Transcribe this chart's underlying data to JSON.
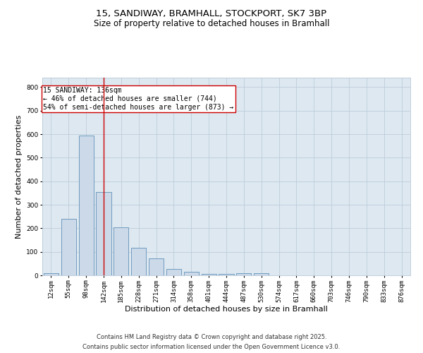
{
  "title_line1": "15, SANDIWAY, BRAMHALL, STOCKPORT, SK7 3BP",
  "title_line2": "Size of property relative to detached houses in Bramhall",
  "xlabel": "Distribution of detached houses by size in Bramhall",
  "ylabel": "Number of detached properties",
  "bar_labels": [
    "12sqm",
    "55sqm",
    "98sqm",
    "142sqm",
    "185sqm",
    "228sqm",
    "271sqm",
    "314sqm",
    "358sqm",
    "401sqm",
    "444sqm",
    "487sqm",
    "530sqm",
    "574sqm",
    "617sqm",
    "660sqm",
    "703sqm",
    "746sqm",
    "790sqm",
    "833sqm",
    "876sqm"
  ],
  "bar_values": [
    10,
    240,
    595,
    355,
    205,
    118,
    72,
    28,
    14,
    6,
    5,
    8,
    8,
    0,
    0,
    0,
    0,
    0,
    0,
    0,
    0
  ],
  "bar_color": "#ccd9e8",
  "bar_edge_color": "#6090b8",
  "grid_color": "#b8c8d8",
  "background_color": "#dde8f0",
  "vline_x_index": 3,
  "vline_color": "#cc0000",
  "annotation_text": "15 SANDIWAY: 136sqm\n← 46% of detached houses are smaller (744)\n54% of semi-detached houses are larger (873) →",
  "annotation_box_color": "#ffffff",
  "annotation_box_edge": "#cc0000",
  "ylim": [
    0,
    840
  ],
  "yticks": [
    0,
    100,
    200,
    300,
    400,
    500,
    600,
    700,
    800
  ],
  "footer_line1": "Contains HM Land Registry data © Crown copyright and database right 2025.",
  "footer_line2": "Contains public sector information licensed under the Open Government Licence v3.0.",
  "title_fontsize": 9.5,
  "subtitle_fontsize": 8.5,
  "axis_label_fontsize": 8,
  "tick_fontsize": 6.5,
  "annotation_fontsize": 7,
  "footer_fontsize": 6
}
